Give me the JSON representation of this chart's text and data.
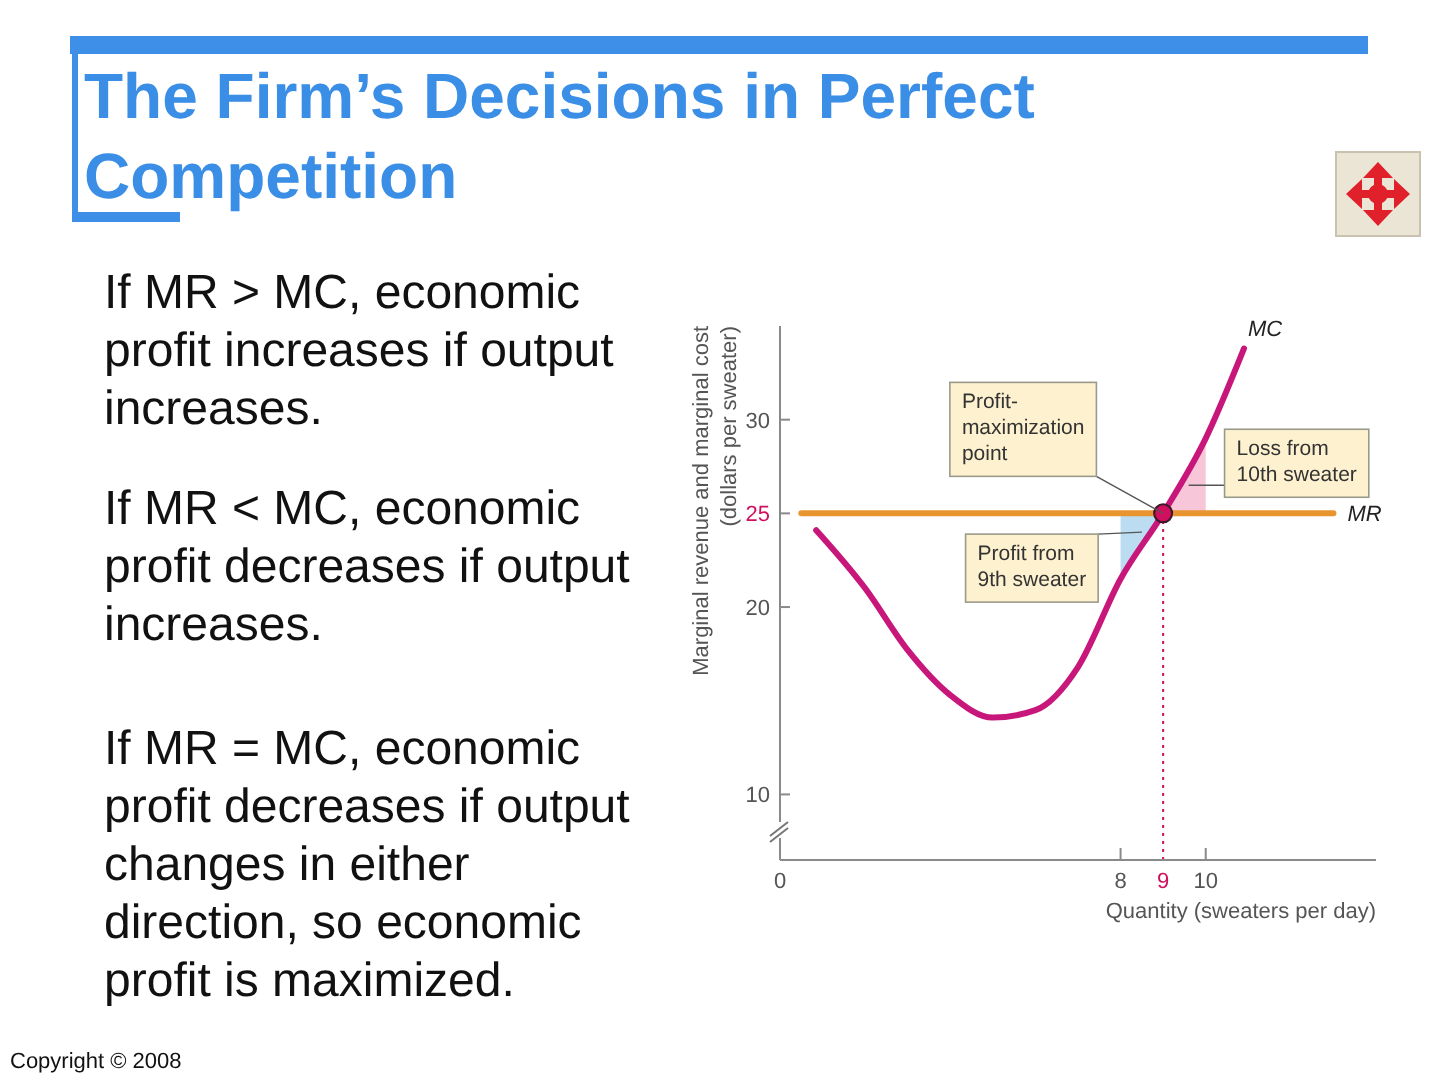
{
  "chart_data": {
    "type": "line",
    "title": "The Firm’s Decisions in Perfect Competition",
    "xlabel": "Quantity (sweaters per day)",
    "ylabel": "Marginal revenue and marginal cost\n(dollars per sweater)",
    "xlim": [
      0,
      14
    ],
    "ylim": [
      6.5,
      35
    ],
    "xticks": [
      0,
      8,
      9,
      10
    ],
    "yticks": [
      10,
      20,
      25,
      30
    ],
    "series": [
      {
        "type": "area",
        "color": "#bcdcf2",
        "x": [
          8,
          8.5,
          9
        ],
        "values": [
          null,
          null,
          null
        ],
        "lower": [
          21.5,
          23.2,
          25
        ],
        "upper": [
          25,
          25,
          25
        ]
      },
      {
        "type": "area",
        "color": "#f7c6d8",
        "x": [
          9,
          9.5,
          10
        ],
        "values": [
          null,
          null,
          null
        ],
        "lower": [
          25,
          25,
          25
        ],
        "upper": [
          25,
          27,
          29
        ]
      },
      {
        "name": "MC",
        "color": "#c8177a",
        "x": [
          0.85,
          2,
          3,
          4,
          5,
          6,
          7,
          8,
          9,
          10,
          10.9
        ],
        "values": [
          24.1,
          21,
          17.7,
          15.3,
          14.1,
          14.5,
          16.8,
          21.5,
          25,
          29,
          33.8
        ]
      },
      {
        "name": "MR",
        "color": "#e8952f",
        "x": [
          0.5,
          13
        ],
        "values": [
          25,
          25
        ]
      },
      {
        "type": "scatter",
        "color": "#d0105f",
        "marker": "circle",
        "x": [
          9
        ],
        "values": [
          25
        ]
      }
    ],
    "ref_lines": [
      {
        "axis": "x",
        "value": 9,
        "color": "#d0105f",
        "line_style": "dotted"
      }
    ],
    "annotations": [
      "If MR > MC, economic profit increases if output increases.",
      "If MR < MC, economic profit decreases if output increases.",
      "If MR = MC, economic profit decreases if output changes in either direction, so economic profit is maximized.",
      {
        "text": "Profit-\nmaximization\npoint",
        "x": 9,
        "y": 25
      },
      {
        "text": "Loss from\n10th sweater",
        "x": 9.6,
        "y": 26.5
      },
      {
        "text": "Profit from\n9th sweater",
        "x": 8.5,
        "y": 24
      },
      "Copyright © 2008"
    ]
  }
}
